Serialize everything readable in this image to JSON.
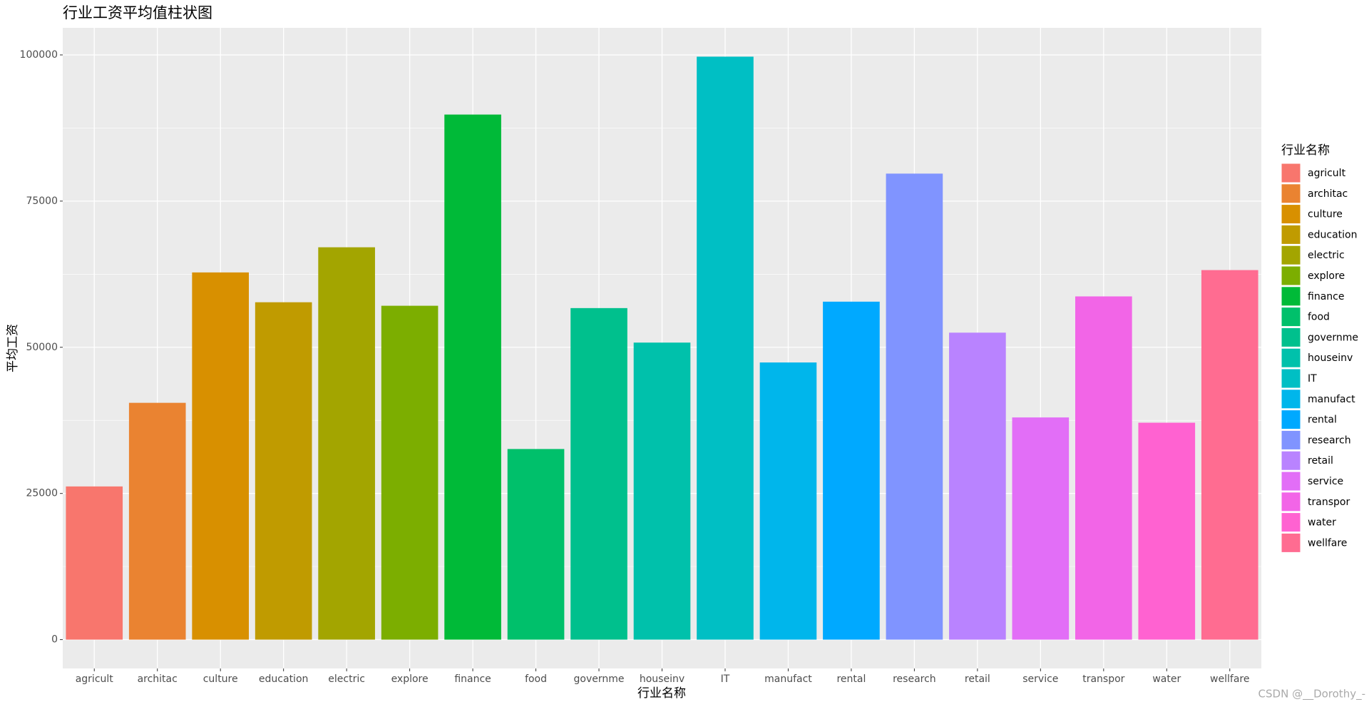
{
  "chart_data": {
    "type": "bar",
    "title": "行业工资平均值柱状图",
    "x_label": "行业名称",
    "y_label": "平均工资",
    "legend_title": "行业名称",
    "legend_position": "right",
    "grid": true,
    "categories": [
      "agricult",
      "architac",
      "culture",
      "education",
      "electric",
      "explore",
      "finance",
      "food",
      "governme",
      "houseinv",
      "IT",
      "manufact",
      "rental",
      "research",
      "retail",
      "service",
      "transpor",
      "water",
      "wellfare"
    ],
    "values": [
      26200,
      40500,
      62800,
      57700,
      67100,
      57100,
      89800,
      32600,
      56700,
      50800,
      99700,
      47400,
      57800,
      79700,
      52500,
      38000,
      58700,
      37100,
      63200
    ],
    "colors": [
      "#F8766D",
      "#EA8331",
      "#D89000",
      "#C09B00",
      "#A3A500",
      "#7CAE00",
      "#00BA38",
      "#00C06B",
      "#00C08D",
      "#00C1AB",
      "#00BFC4",
      "#00B6EB",
      "#00A9FF",
      "#8094FF",
      "#B983FF",
      "#E26EF7",
      "#F265E7",
      "#FF62D1",
      "#FF6C91"
    ],
    "ylim": [
      -4933,
      104634
    ],
    "yticks": [
      0,
      25000,
      50000,
      75000,
      100000
    ],
    "watermark": "CSDN @__Dorothy_-"
  }
}
